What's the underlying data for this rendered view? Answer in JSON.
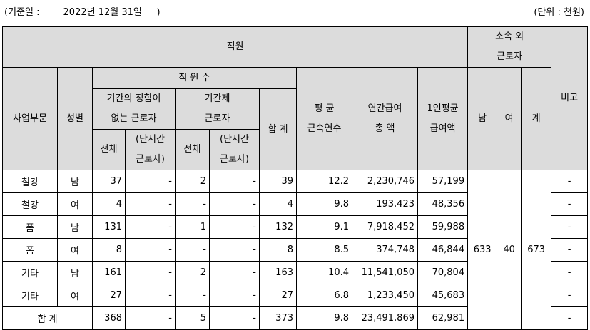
{
  "caption": {
    "basis": "(기준일 :        2022년 12월 31일     )",
    "unit": "(단위 : 천원)"
  },
  "headers": {
    "staff": "직원",
    "outsourced": [
      "소속 외",
      "근로자"
    ],
    "remarks": "비고",
    "division": "사업부문",
    "gender": "성별",
    "staff_count": "직 원 수",
    "regular": [
      "기간의 정함이",
      "없는 근로자"
    ],
    "contract": [
      "기간제",
      "근로자"
    ],
    "total": "합 계",
    "avg_tenure": [
      "평 균",
      "근속연수"
    ],
    "annual_pay": [
      "연간급여",
      "총 액"
    ],
    "avg_pay": [
      "1인평균",
      "급여액"
    ],
    "male": "남",
    "female": "여",
    "sum": "계",
    "all": "전체",
    "part_time": [
      "(단시간",
      "근로자)"
    ]
  },
  "rows": [
    {
      "division": "철강",
      "gender": "남",
      "reg_total": "37",
      "reg_part": "-",
      "con_total": "2",
      "con_part": "-",
      "total": "39",
      "tenure": "12.2",
      "pay_total": "2,230,746",
      "pay_avg": "57,199",
      "remarks": "-"
    },
    {
      "division": "철강",
      "gender": "여",
      "reg_total": "4",
      "reg_part": "-",
      "con_total": "-",
      "con_part": "-",
      "total": "4",
      "tenure": "9.8",
      "pay_total": "193,423",
      "pay_avg": "48,356",
      "remarks": "-"
    },
    {
      "division": "폼",
      "gender": "남",
      "reg_total": "131",
      "reg_part": "-",
      "con_total": "1",
      "con_part": "-",
      "total": "132",
      "tenure": "9.1",
      "pay_total": "7,918,452",
      "pay_avg": "59,988",
      "remarks": "-"
    },
    {
      "division": "폼",
      "gender": "여",
      "reg_total": "8",
      "reg_part": "-",
      "con_total": "-",
      "con_part": "-",
      "total": "8",
      "tenure": "8.5",
      "pay_total": "374,748",
      "pay_avg": "46,844",
      "remarks": "-"
    },
    {
      "division": "기타",
      "gender": "남",
      "reg_total": "161",
      "reg_part": "-",
      "con_total": "2",
      "con_part": "-",
      "total": "163",
      "tenure": "10.4",
      "pay_total": "11,541,050",
      "pay_avg": "70,804",
      "remarks": "-"
    },
    {
      "division": "기타",
      "gender": "여",
      "reg_total": "27",
      "reg_part": "-",
      "con_total": "-",
      "con_part": "-",
      "total": "27",
      "tenure": "6.8",
      "pay_total": "1,233,450",
      "pay_avg": "45,683",
      "remarks": "-"
    }
  ],
  "outsourced_values": {
    "male": "633",
    "female": "40",
    "total": "673"
  },
  "total_row": {
    "label": "합 계",
    "reg_total": "368",
    "reg_part": "-",
    "con_total": "5",
    "con_part": "-",
    "total": "373",
    "tenure": "9.8",
    "pay_total": "23,491,869",
    "pay_avg": "62,981",
    "remarks": "-"
  }
}
